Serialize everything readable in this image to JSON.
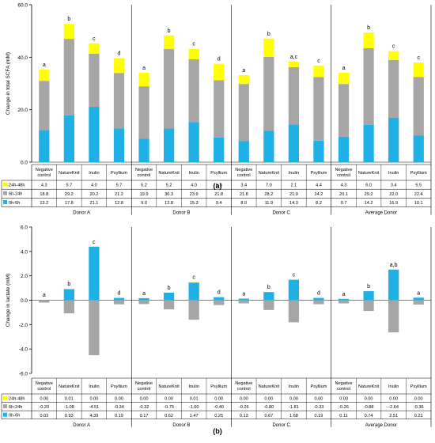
{
  "colors": {
    "h24_48": "#ffff00",
    "h6_24": "#a6a6a6",
    "h0_6": "#1fb1e6",
    "axis": "#000000",
    "grid": "#000000"
  },
  "chart_data": [
    {
      "panel_label": "(a)",
      "type": "bar",
      "stacked": true,
      "ylabel": "Change in total SCFA (mM)",
      "ylim": [
        0,
        60
      ],
      "yticks": [
        "0.0",
        "20.0",
        "40.0",
        "60.0"
      ],
      "ytick_values": [
        0,
        20,
        40,
        60
      ],
      "group_labels": [
        "Donor A",
        "Donor B",
        "Donor C",
        "Average Donor"
      ],
      "categories": [
        "Negative control",
        "NatureKnit",
        "Inulin",
        "Psyllium"
      ],
      "legend_placement": "left of data table",
      "series": [
        {
          "name": "24h-48h",
          "color_key": "h24_48",
          "values": [
            [
              4.3,
              5.7,
              4.0,
              5.7
            ],
            [
              5.2,
              5.2,
              4.0,
              6.3
            ],
            [
              3.4,
              7.0,
              2.1,
              4.4
            ],
            [
              4.3,
              6.0,
              3.4,
              5.5
            ]
          ],
          "labels": [
            [
              "4.3",
              "5.7",
              "4.0",
              "5.7"
            ],
            [
              "5.2",
              "5.2",
              "4.0",
              "6.3"
            ],
            [
              "3.4",
              "7.0",
              "2.1",
              "4.4"
            ],
            [
              "4.3",
              "6.0",
              "3.4",
              "5.5"
            ]
          ]
        },
        {
          "name": "6h-24h",
          "color_key": "h6_24",
          "values": [
            [
              18.8,
              29.2,
              20.2,
              21.2
            ],
            [
              19.9,
              30.3,
              23.9,
              21.8
            ],
            [
              21.8,
              28.2,
              21.9,
              24.2
            ],
            [
              20.1,
              29.2,
              22.0,
              22.4
            ]
          ],
          "labels": [
            [
              "18.8",
              "29.2",
              "20.2",
              "21.2"
            ],
            [
              "19.9",
              "30.3",
              "23.9",
              "21.8"
            ],
            [
              "21.8",
              "28.2",
              "21.9",
              "24.2"
            ],
            [
              "20.1",
              "29.2",
              "22.0",
              "22.4"
            ]
          ]
        },
        {
          "name": "0h-6h",
          "color_key": "h0_6",
          "values": [
            [
              12.2,
              17.8,
              21.1,
              12.8
            ],
            [
              9.0,
              12.8,
              15.3,
              9.4
            ],
            [
              8.0,
              11.9,
              14.3,
              8.2
            ],
            [
              9.7,
              14.2,
              16.9,
              10.1
            ]
          ],
          "labels": [
            [
              "12.2",
              "17.8",
              "21.1",
              "12.8"
            ],
            [
              "9.0",
              "12.8",
              "15.3",
              "9.4"
            ],
            [
              "8.0",
              "11.9",
              "14.3",
              "8.2"
            ],
            [
              "9.7",
              "14.2",
              "16.9",
              "10.1"
            ]
          ]
        }
      ],
      "significance": [
        [
          "a",
          "b",
          "c",
          "d"
        ],
        [
          "a",
          "b",
          "c",
          "d"
        ],
        [
          "a",
          "b",
          "a,c",
          "c"
        ],
        [
          "a",
          "b",
          "c",
          "c"
        ]
      ]
    },
    {
      "panel_label": "(b)",
      "type": "bar",
      "stacked": true,
      "ylabel": "Change in lactate (mM)",
      "ylim": [
        -6,
        6
      ],
      "yticks": [
        "-6.0",
        "-4.0",
        "-2.0",
        "0.0",
        "2.0",
        "4.0",
        "6.0"
      ],
      "ytick_values": [
        -6,
        -4,
        -2,
        0,
        2,
        4,
        6
      ],
      "group_labels": [
        "Donor A",
        "Donor B",
        "Donor C",
        "Average Donor"
      ],
      "categories": [
        "Negative control",
        "NatureKnit",
        "Inulin",
        "Psyllium"
      ],
      "legend_placement": "left of data table",
      "series": [
        {
          "name": "24h-48h",
          "color_key": "h24_48",
          "values": [
            [
              0.0,
              0.01,
              0.0,
              0.0
            ],
            [
              0.0,
              0.0,
              0.01,
              0.0
            ],
            [
              0.0,
              0.0,
              0.0,
              0.0
            ],
            [
              0.0,
              0.0,
              0.0,
              0.0
            ]
          ],
          "labels": [
            [
              "0.00",
              "0.01",
              "0.00",
              "0.00"
            ],
            [
              "0.00",
              "0.00",
              "0.01",
              "0.00"
            ],
            [
              "0.00",
              "0.00",
              "0.00",
              "0.00"
            ],
            [
              "0.00",
              "0.00",
              "0.00",
              "0.00"
            ]
          ]
        },
        {
          "name": "6h-24h",
          "color_key": "h6_24",
          "values": [
            [
              -0.2,
              -1.08,
              -4.51,
              -0.34
            ],
            [
              -0.32,
              -0.75,
              -1.6,
              -0.4
            ],
            [
              -0.26,
              -0.8,
              -1.81,
              -0.33
            ],
            [
              -0.26,
              -0.88,
              -2.64,
              -0.36
            ]
          ],
          "labels": [
            [
              "-0.20",
              "-1.08",
              "-4.51",
              "-0.34"
            ],
            [
              "-0.32",
              "-0.75",
              "-1.60",
              "-0.40"
            ],
            [
              "-0.26",
              "-0.80",
              "-1.81",
              "-0.33"
            ],
            [
              "-0.26",
              "-0.88",
              "-2.64",
              "-0.36"
            ]
          ]
        },
        {
          "name": "0h-6h",
          "color_key": "h0_6",
          "values": [
            [
              0.03,
              0.93,
              4.39,
              0.19
            ],
            [
              0.17,
              0.62,
              1.47,
              0.25
            ],
            [
              0.13,
              0.67,
              1.68,
              0.19
            ],
            [
              0.11,
              0.74,
              2.51,
              0.21
            ]
          ],
          "labels": [
            [
              "0.03",
              "0.93",
              "4.39",
              "0.19"
            ],
            [
              "0.17",
              "0.62",
              "1.47",
              "0.25"
            ],
            [
              "0.13",
              "0.67",
              "1.68",
              "0.19"
            ],
            [
              "0.11",
              "0.74",
              "2.51",
              "0.21"
            ]
          ]
        }
      ],
      "significance": [
        [
          "a",
          "b",
          "c",
          "d"
        ],
        [
          "a",
          "b",
          "c",
          "d"
        ],
        [
          "a",
          "b",
          "c",
          "d"
        ],
        [
          "a",
          "b",
          "a,b",
          "a"
        ]
      ]
    }
  ]
}
